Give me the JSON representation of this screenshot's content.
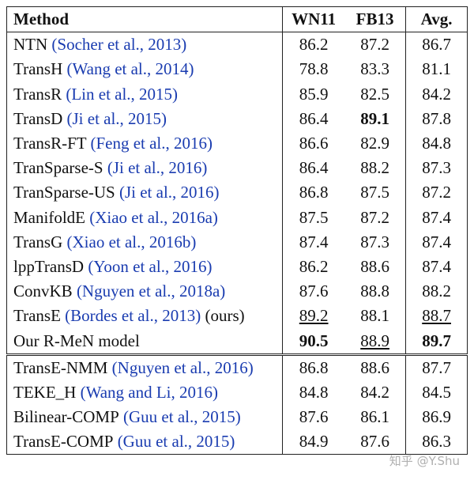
{
  "table": {
    "headers": [
      "Method",
      "WN11",
      "FB13",
      "Avg."
    ],
    "rows": [
      {
        "name": "NTN",
        "cite": "(Socher et al., 2013)",
        "wn": "86.2",
        "fb": "87.2",
        "avg": "86.7"
      },
      {
        "name": "TransH",
        "cite": "(Wang et al., 2014)",
        "wn": "78.8",
        "fb": "83.3",
        "avg": "81.1"
      },
      {
        "name": "TransR",
        "cite": "(Lin et al., 2015)",
        "wn": "85.9",
        "fb": "82.5",
        "avg": "84.2"
      },
      {
        "name": "TransD",
        "cite": "(Ji et al., 2015)",
        "wn": "86.4",
        "fb": "89.1",
        "avg": "87.8",
        "fb_style": "b"
      },
      {
        "name": "TransR-FT",
        "cite": "(Feng et al., 2016)",
        "wn": "86.6",
        "fb": "82.9",
        "avg": "84.8"
      },
      {
        "name": "TranSparse-S",
        "cite": "(Ji et al., 2016)",
        "wn": "86.4",
        "fb": "88.2",
        "avg": "87.3"
      },
      {
        "name": "TranSparse-US",
        "cite": "(Ji et al., 2016)",
        "wn": "86.8",
        "fb": "87.5",
        "avg": "87.2"
      },
      {
        "name": "ManifoldE",
        "cite": "(Xiao et al., 2016a)",
        "wn": "87.5",
        "fb": "87.2",
        "avg": "87.4"
      },
      {
        "name": "TransG",
        "cite": "(Xiao et al., 2016b)",
        "wn": "87.4",
        "fb": "87.3",
        "avg": "87.4"
      },
      {
        "name": "lppTransD",
        "cite": "(Yoon et al., 2016)",
        "wn": "86.2",
        "fb": "88.6",
        "avg": "87.4"
      },
      {
        "name": "ConvKB",
        "cite": "(Nguyen et al., 2018a)",
        "wn": "87.6",
        "fb": "88.8",
        "avg": "88.2"
      },
      {
        "name": "TransE",
        "cite": "(Bordes et al., 2013)",
        "suffix": "(ours)",
        "wn": "89.2",
        "fb": "88.1",
        "avg": "88.7",
        "wn_style": "u",
        "avg_style": "u"
      },
      {
        "name": "Our R-MeN model",
        "wn": "90.5",
        "fb": "88.9",
        "avg": "89.7",
        "wn_style": "b",
        "fb_style": "u",
        "avg_style": "b",
        "kind": "ours"
      },
      {
        "name": "TransE-NMM",
        "cite": "(Nguyen et al., 2016)",
        "wn": "86.8",
        "fb": "88.6",
        "avg": "87.7",
        "kind": "sep"
      },
      {
        "name": "TEKE_H",
        "cite": "(Wang and Li, 2016)",
        "wn": "84.8",
        "fb": "84.2",
        "avg": "84.5"
      },
      {
        "name": "Bilinear-",
        "sc": "COMP",
        "cite": "(Guu et al., 2015)",
        "wn": "87.6",
        "fb": "86.1",
        "avg": "86.9"
      },
      {
        "name": "TransE-",
        "sc": "COMP",
        "cite": "(Guu et al., 2015)",
        "wn": "84.9",
        "fb": "87.6",
        "avg": "86.3",
        "kind": "last"
      }
    ]
  },
  "watermark": "知乎 @Y.Shu"
}
